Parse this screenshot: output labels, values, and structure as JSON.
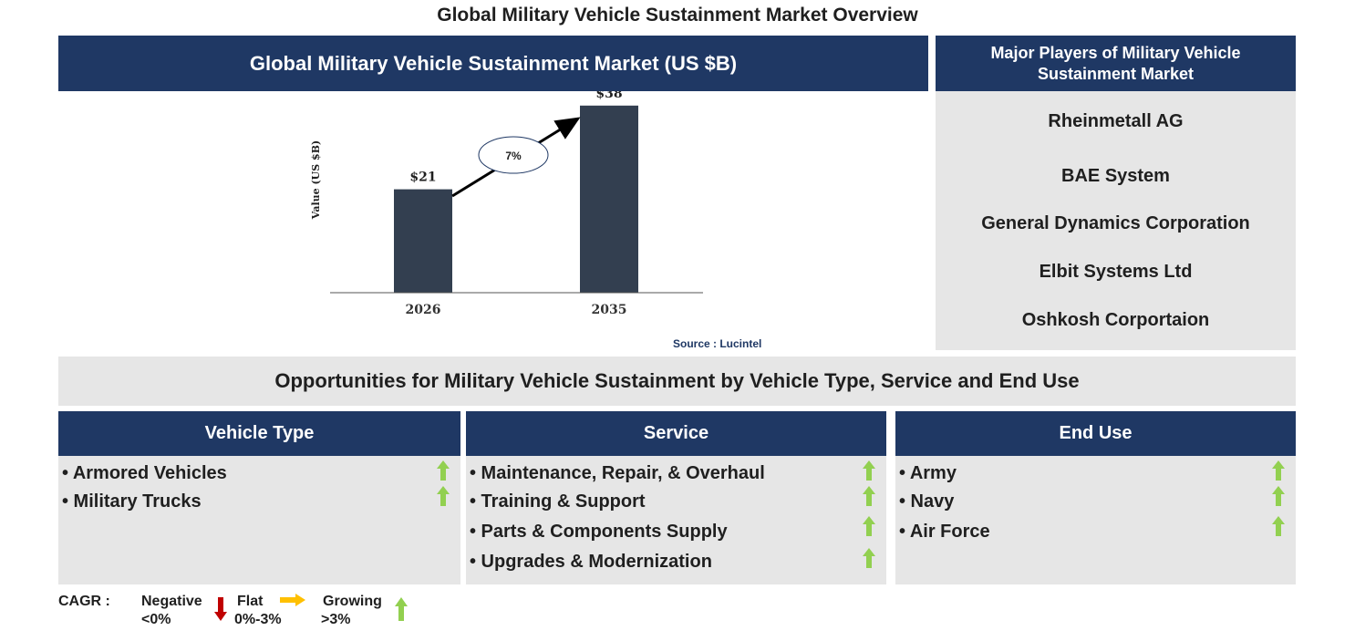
{
  "page_title": "Global Military Vehicle Sustainment Market Overview",
  "chart_header": "Global Military Vehicle Sustainment Market (US $B)",
  "chart_data": {
    "type": "bar",
    "categories": [
      "2026",
      "2035"
    ],
    "values": [
      21,
      38
    ],
    "value_labels": [
      "$21",
      "$38"
    ],
    "ylabel": "Value (US $B)",
    "cagr_label": "7%",
    "bar_color": "#333f50",
    "ylim": [
      0,
      40
    ]
  },
  "source": "Source : Lucintel",
  "players": {
    "header": "Major Players of Military Vehicle Sustainment Market",
    "items": [
      "Rheinmetall AG",
      "BAE System",
      "General Dynamics Corporation",
      "Elbit Systems Ltd",
      "Oshkosh Corportaion"
    ]
  },
  "opportunities_title": "Opportunities for Military Vehicle Sustainment by Vehicle Type, Service and End Use",
  "segments": [
    {
      "header": "Vehicle Type",
      "items": [
        "• Armored Vehicles",
        "• Military Trucks"
      ]
    },
    {
      "header": "Service",
      "items": [
        "• Maintenance, Repair, & Overhaul",
        "• Training & Support",
        "• Parts & Components Supply",
        "• Upgrades & Modernization"
      ]
    },
    {
      "header": "End Use",
      "items": [
        "• Army",
        "• Navy",
        "• Air Force"
      ]
    }
  ],
  "legend": {
    "cagr": "CAGR :",
    "negative": "Negative",
    "negative_range": "<0%",
    "flat": "Flat",
    "flat_range": "0%-3%",
    "growing": "Growing",
    "growing_range": ">3%"
  },
  "colors": {
    "navy": "#1f3864",
    "grey_panel": "#e6e6e6",
    "growing_arrow": "#92d050",
    "flat_arrow": "#ffc000",
    "negative_arrow": "#c00000"
  }
}
